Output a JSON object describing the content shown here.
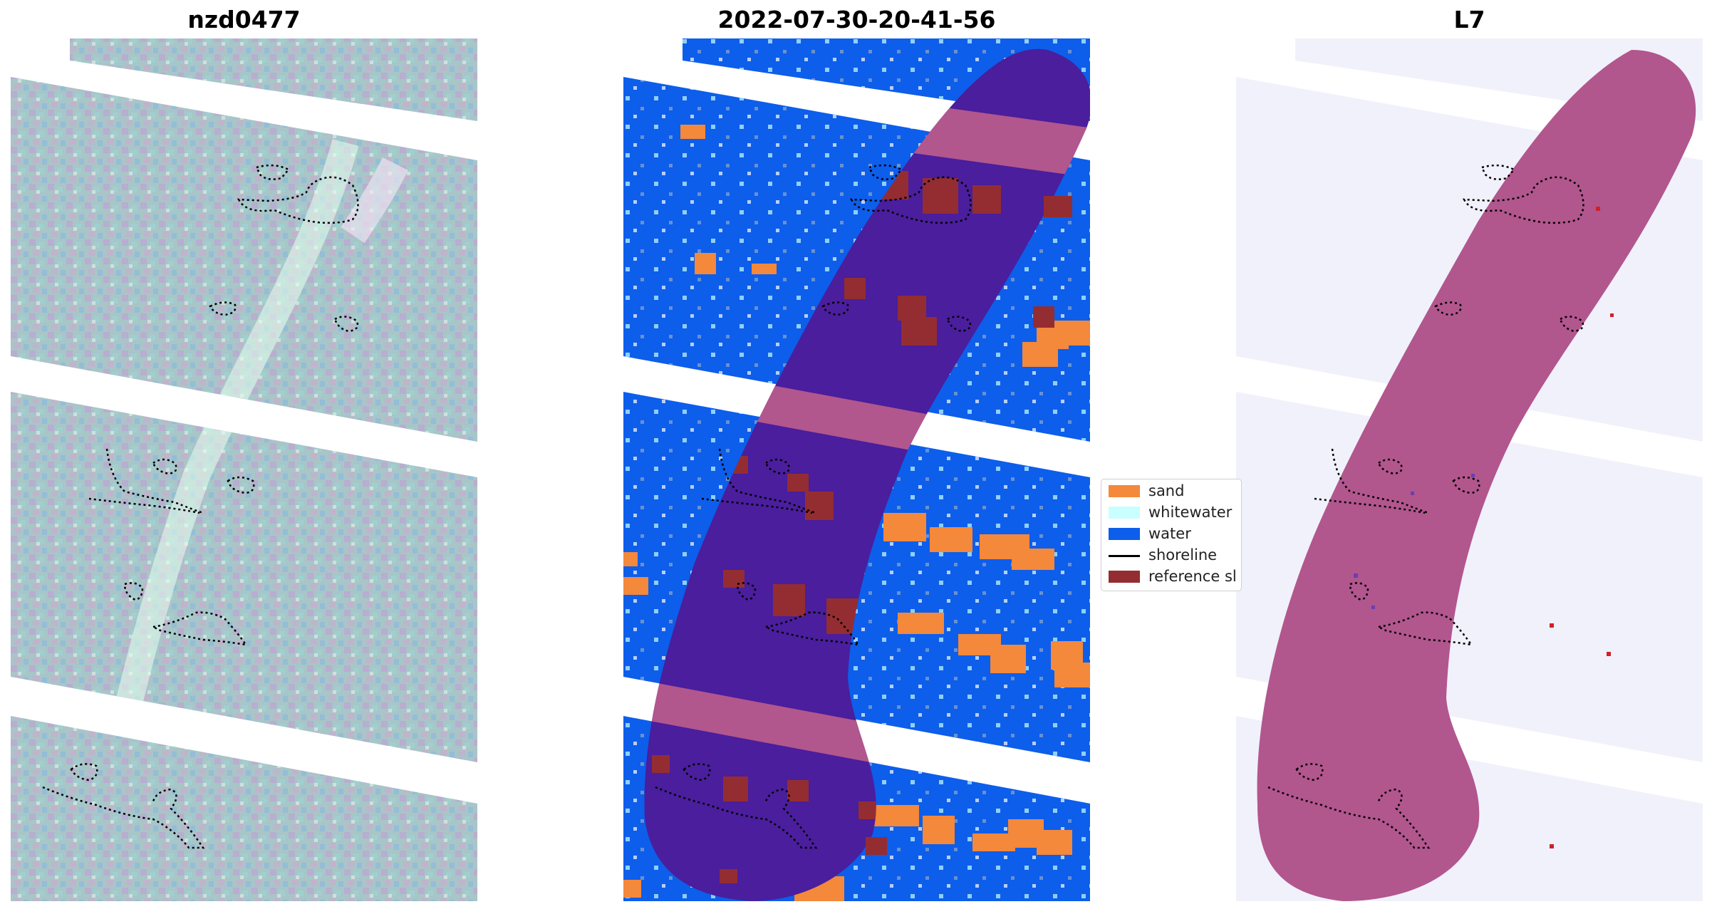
{
  "panels": [
    {
      "title": "nzd0477"
    },
    {
      "title": "2022-07-30-20-41-56"
    },
    {
      "title": "L7"
    }
  ],
  "legend": {
    "items": [
      {
        "label": "sand",
        "color": "#f4883b",
        "kind": "patch"
      },
      {
        "label": "whitewater",
        "color": "#c8ffff",
        "kind": "patch"
      },
      {
        "label": "water",
        "color": "#0d5eea",
        "kind": "patch"
      },
      {
        "label": "shoreline",
        "color": "#000000",
        "kind": "line"
      },
      {
        "label": "reference sl",
        "color": "#942d31",
        "kind": "patch"
      }
    ]
  },
  "colors": {
    "rgb_base": "#a9c6c6",
    "reference_zone": "#b2568e",
    "dark_zone": "#4a1e9c",
    "l7_background": "#f1f1fb",
    "contour": "#000000"
  }
}
